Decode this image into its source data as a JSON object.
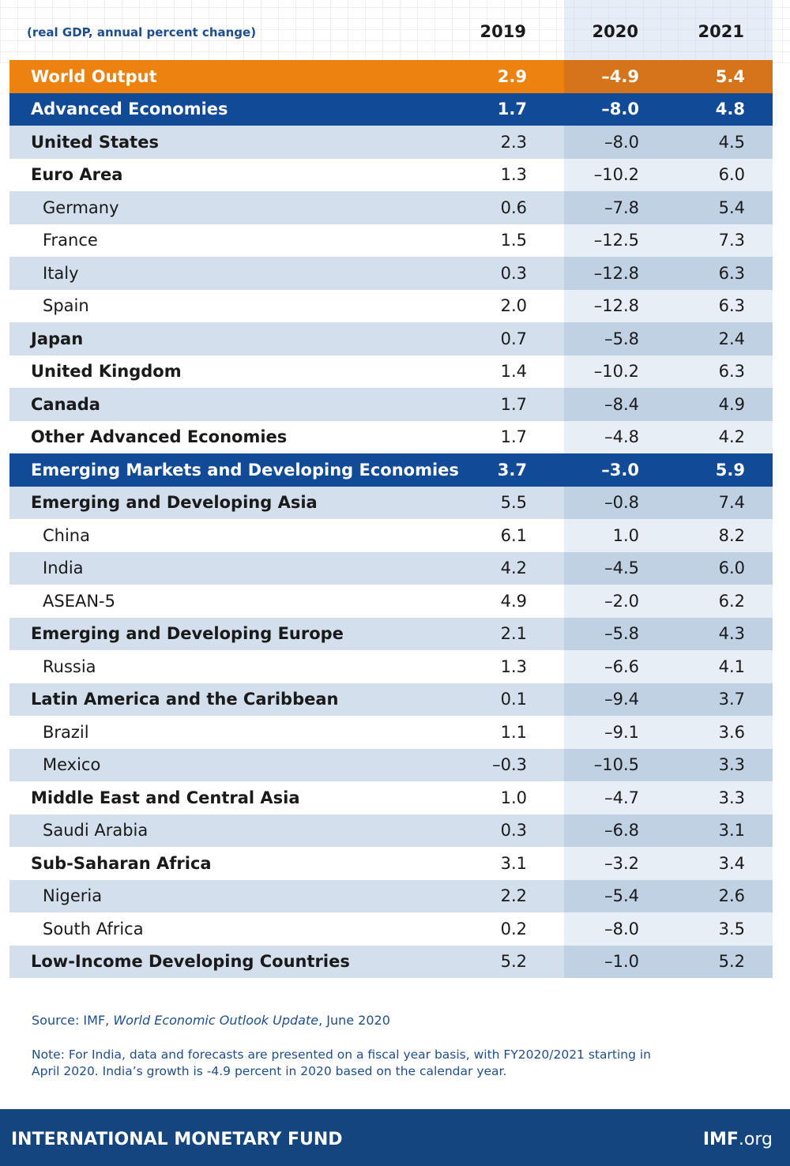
{
  "chart_data": {
    "type": "table",
    "subtitle": "(real GDP, annual percent change)",
    "columns": [
      "2019",
      "2020",
      "2021"
    ],
    "rows": [
      {
        "name": "World Output",
        "level": "world",
        "values": [
          "2.9",
          "–4.9",
          "5.4"
        ]
      },
      {
        "name": "Advanced Economies",
        "level": "group",
        "values": [
          "1.7",
          "–8.0",
          "4.8"
        ]
      },
      {
        "name": "United States",
        "level": "main",
        "values": [
          "2.3",
          "–8.0",
          "4.5"
        ]
      },
      {
        "name": "Euro Area",
        "level": "main",
        "values": [
          "1.3",
          "–10.2",
          "6.0"
        ]
      },
      {
        "name": "Germany",
        "level": "sub",
        "values": [
          "0.6",
          "–7.8",
          "5.4"
        ]
      },
      {
        "name": "France",
        "level": "sub",
        "values": [
          "1.5",
          "–12.5",
          "7.3"
        ]
      },
      {
        "name": "Italy",
        "level": "sub",
        "values": [
          "0.3",
          "–12.8",
          "6.3"
        ]
      },
      {
        "name": "Spain",
        "level": "sub",
        "values": [
          "2.0",
          "–12.8",
          "6.3"
        ]
      },
      {
        "name": "Japan",
        "level": "main",
        "values": [
          "0.7",
          "–5.8",
          "2.4"
        ]
      },
      {
        "name": "United Kingdom",
        "level": "main",
        "values": [
          "1.4",
          "–10.2",
          "6.3"
        ]
      },
      {
        "name": "Canada",
        "level": "main",
        "values": [
          "1.7",
          "–8.4",
          "4.9"
        ]
      },
      {
        "name": "Other Advanced Economies",
        "level": "main",
        "values": [
          "1.7",
          "–4.8",
          "4.2"
        ]
      },
      {
        "name": "Emerging Markets and Developing Economies",
        "level": "group",
        "values": [
          "3.7",
          "–3.0",
          "5.9"
        ]
      },
      {
        "name": "Emerging and Developing Asia",
        "level": "main",
        "values": [
          "5.5",
          "–0.8",
          "7.4"
        ]
      },
      {
        "name": "China",
        "level": "sub",
        "values": [
          "6.1",
          "1.0",
          "8.2"
        ]
      },
      {
        "name": "India",
        "level": "sub",
        "values": [
          "4.2",
          "–4.5",
          "6.0"
        ]
      },
      {
        "name": "ASEAN-5",
        "level": "sub",
        "values": [
          "4.9",
          "–2.0",
          "6.2"
        ]
      },
      {
        "name": "Emerging and Developing Europe",
        "level": "main",
        "values": [
          "2.1",
          "–5.8",
          "4.3"
        ]
      },
      {
        "name": "Russia",
        "level": "sub",
        "values": [
          "1.3",
          "–6.6",
          "4.1"
        ]
      },
      {
        "name": "Latin America and the Caribbean",
        "level": "main",
        "values": [
          "0.1",
          "–9.4",
          "3.7"
        ]
      },
      {
        "name": "Brazil",
        "level": "sub",
        "values": [
          "1.1",
          "–9.1",
          "3.6"
        ]
      },
      {
        "name": "Mexico",
        "level": "sub",
        "values": [
          "–0.3",
          "–10.5",
          "3.3"
        ]
      },
      {
        "name": "Middle East and Central Asia",
        "level": "main",
        "values": [
          "1.0",
          "–4.7",
          "3.3"
        ]
      },
      {
        "name": "Saudi Arabia",
        "level": "sub",
        "values": [
          "0.3",
          "–6.8",
          "3.1"
        ]
      },
      {
        "name": "Sub-Saharan Africa",
        "level": "main",
        "values": [
          "3.1",
          "–3.2",
          "3.4"
        ]
      },
      {
        "name": "Nigeria",
        "level": "sub",
        "values": [
          "2.2",
          "–5.4",
          "2.6"
        ]
      },
      {
        "name": "South Africa",
        "level": "sub",
        "values": [
          "0.2",
          "–8.0",
          "3.5"
        ]
      },
      {
        "name": "Low-Income Developing Countries",
        "level": "main",
        "values": [
          "5.2",
          "–1.0",
          "5.2"
        ]
      }
    ]
  },
  "source": {
    "prefix": "Source: IMF, ",
    "title": "World Economic Outlook Update",
    "suffix": ", June 2020"
  },
  "note": "Note: For India, data and forecasts are presented on a fiscal year basis, with FY2020/2021 starting in April 2020. India’s growth is -4.9 percent in 2020 based on the calendar year.",
  "footer": {
    "org": "INTERNATIONAL MONETARY FUND",
    "site_bold": "IMF",
    "site_rest": ".org"
  },
  "colors": {
    "world_row": "#ee8210",
    "group_row": "#114a97",
    "alt_row": "#d3dfec",
    "footer": "#14457f",
    "text_blue": "#1f4e8c"
  }
}
